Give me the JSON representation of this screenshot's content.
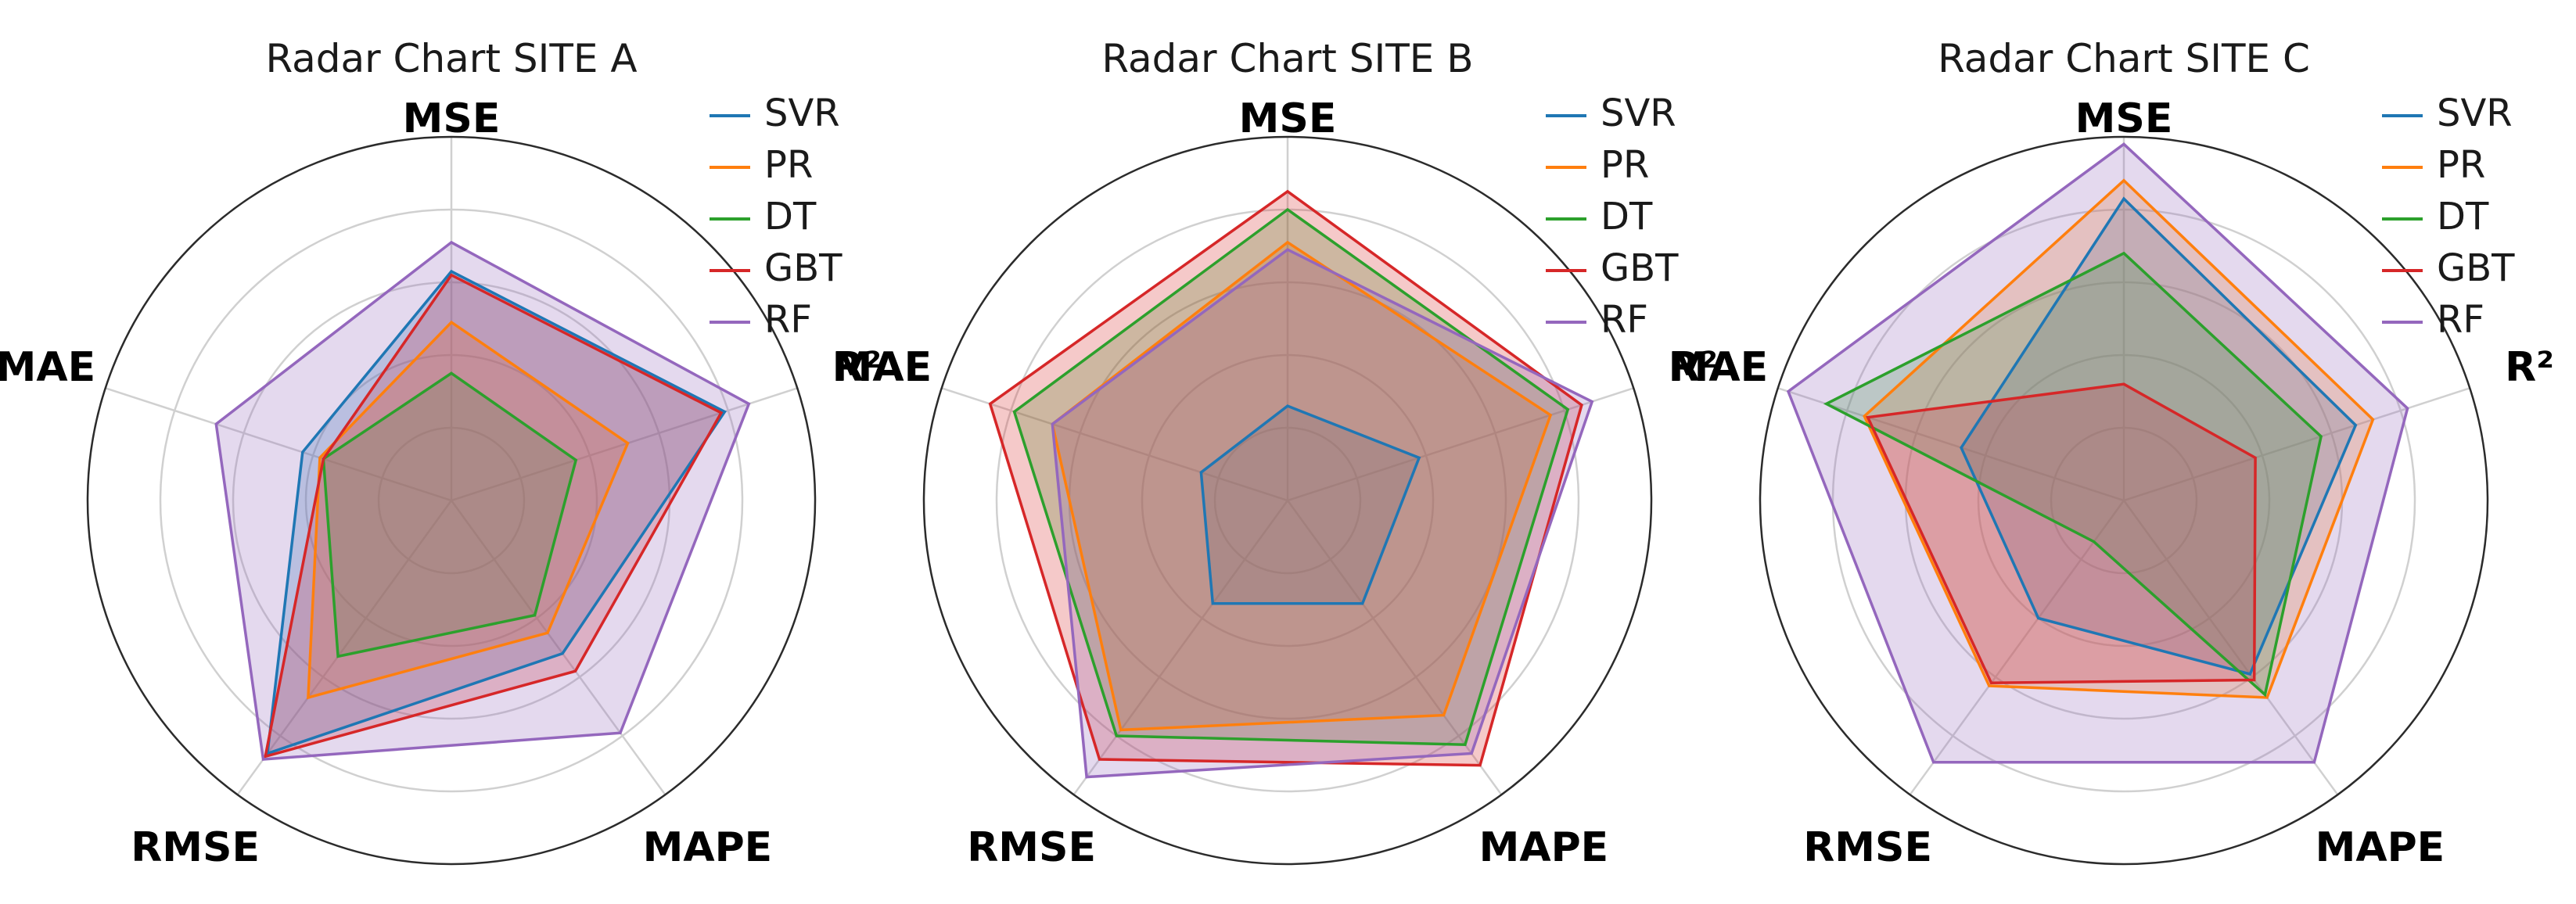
{
  "chart_data": [
    {
      "type": "radar",
      "title": "Radar Chart SITE A",
      "axes": [
        "MSE",
        "R²",
        "MAPE",
        "RMSE",
        "MAE"
      ],
      "rlim": [
        0,
        1
      ],
      "grid": true,
      "legend_position": "top-right",
      "series": [
        {
          "name": "SVR",
          "color": "#1f77b4",
          "values": [
            0.63,
            0.79,
            0.52,
            0.86,
            0.43
          ]
        },
        {
          "name": "PR",
          "color": "#ff7f0e",
          "values": [
            0.49,
            0.51,
            0.45,
            0.67,
            0.38
          ]
        },
        {
          "name": "DT",
          "color": "#2ca02c",
          "values": [
            0.35,
            0.36,
            0.39,
            0.53,
            0.37
          ]
        },
        {
          "name": "GBT",
          "color": "#d62728",
          "values": [
            0.62,
            0.78,
            0.58,
            0.87,
            0.37
          ]
        },
        {
          "name": "RF",
          "color": "#9467bd",
          "values": [
            0.71,
            0.86,
            0.79,
            0.88,
            0.68
          ]
        }
      ]
    },
    {
      "type": "radar",
      "title": "Radar Chart SITE B",
      "axes": [
        "MSE",
        "R²",
        "MAPE",
        "RMSE",
        "MAE"
      ],
      "rlim": [
        0,
        1
      ],
      "grid": true,
      "legend_position": "top-right",
      "series": [
        {
          "name": "SVR",
          "color": "#1f77b4",
          "values": [
            0.26,
            0.38,
            0.35,
            0.35,
            0.25
          ]
        },
        {
          "name": "PR",
          "color": "#ff7f0e",
          "values": [
            0.71,
            0.76,
            0.73,
            0.78,
            0.68
          ]
        },
        {
          "name": "DT",
          "color": "#2ca02c",
          "values": [
            0.8,
            0.81,
            0.83,
            0.8,
            0.79
          ]
        },
        {
          "name": "GBT",
          "color": "#d62728",
          "values": [
            0.85,
            0.85,
            0.9,
            0.88,
            0.86
          ]
        },
        {
          "name": "RF",
          "color": "#9467bd",
          "values": [
            0.69,
            0.88,
            0.86,
            0.94,
            0.68
          ]
        }
      ]
    },
    {
      "type": "radar",
      "title": "Radar Chart SITE C",
      "axes": [
        "MSE",
        "R²",
        "MAPE",
        "RMSE",
        "MAE"
      ],
      "rlim": [
        0,
        1
      ],
      "grid": true,
      "legend_position": "top-right",
      "series": [
        {
          "name": "SVR",
          "color": "#1f77b4",
          "values": [
            0.83,
            0.67,
            0.59,
            0.4,
            0.47
          ]
        },
        {
          "name": "PR",
          "color": "#ff7f0e",
          "values": [
            0.88,
            0.72,
            0.67,
            0.63,
            0.75
          ]
        },
        {
          "name": "DT",
          "color": "#2ca02c",
          "values": [
            0.68,
            0.57,
            0.66,
            0.14,
            0.86
          ]
        },
        {
          "name": "GBT",
          "color": "#d62728",
          "values": [
            0.32,
            0.38,
            0.61,
            0.62,
            0.74
          ]
        },
        {
          "name": "RF",
          "color": "#9467bd",
          "values": [
            0.98,
            0.82,
            0.89,
            0.89,
            0.97
          ]
        }
      ]
    }
  ]
}
